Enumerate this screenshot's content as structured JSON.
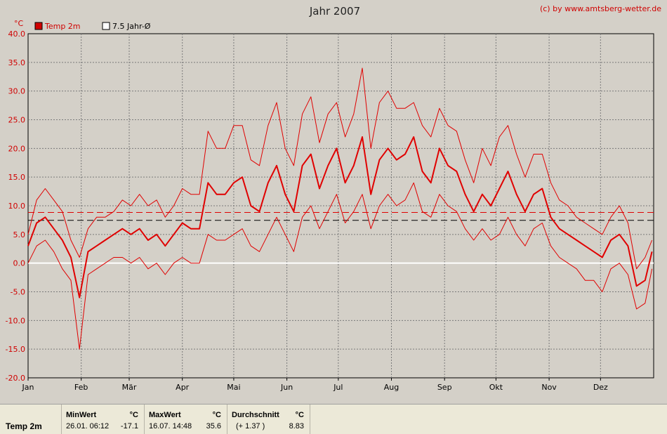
{
  "page": {
    "title": "Jahr 2007",
    "copyright": "(c) by www.amtsberg-wetter.de",
    "unit": "°C"
  },
  "chart_data": {
    "type": "line",
    "title": "Jahr 2007",
    "ylabel": "°C",
    "ylim": [
      -20,
      40
    ],
    "yticks": [
      "40.0",
      "35.0",
      "30.0",
      "25.0",
      "20.0",
      "15.0",
      "10.0",
      "5.0",
      "0.0",
      "-5.0",
      "-10.0",
      "-15.0",
      "-20.0"
    ],
    "months": [
      "Jan",
      "Feb",
      "Mär",
      "Apr",
      "Mai",
      "Jun",
      "Jul",
      "Aug",
      "Sep",
      "Okt",
      "Nov",
      "Dez"
    ],
    "grid": true,
    "legend": [
      {
        "name": "Temp 2m",
        "color": "#e00000"
      },
      {
        "name": "7.5 Jahr-Ø",
        "color": "#000000"
      }
    ],
    "reference_lines": {
      "year_average": 8.83,
      "long_term_average": 7.46,
      "zero": 0
    },
    "series": [
      {
        "name": "Temp 2m",
        "kind": "daily_mean",
        "color": "#e00000",
        "x": [
          1,
          6,
          11,
          16,
          21,
          26,
          31,
          36,
          41,
          46,
          51,
          56,
          61,
          66,
          71,
          76,
          81,
          86,
          91,
          96,
          101,
          106,
          111,
          116,
          121,
          126,
          131,
          136,
          141,
          146,
          151,
          156,
          161,
          166,
          171,
          176,
          181,
          186,
          191,
          196,
          201,
          206,
          211,
          216,
          221,
          226,
          231,
          236,
          241,
          246,
          251,
          256,
          261,
          266,
          271,
          276,
          281,
          286,
          291,
          296,
          301,
          306,
          311,
          316,
          321,
          326,
          331,
          336,
          341,
          346,
          351,
          356,
          361,
          365
        ],
        "values": [
          3,
          7,
          8,
          6,
          4,
          1,
          -6,
          2,
          3,
          4,
          5,
          6,
          5,
          6,
          4,
          5,
          3,
          5,
          7,
          6,
          6,
          14,
          12,
          12,
          14,
          15,
          10,
          9,
          14,
          17,
          12,
          9,
          17,
          19,
          13,
          17,
          20,
          14,
          17,
          22,
          12,
          18,
          20,
          18,
          19,
          22,
          16,
          14,
          20,
          17,
          16,
          12,
          9,
          12,
          10,
          13,
          16,
          12,
          9,
          12,
          13,
          8,
          6,
          5,
          4,
          3,
          2,
          1,
          4,
          5,
          3,
          -4,
          -3,
          2
        ]
      },
      {
        "name": "Temp 2m max",
        "kind": "daily_max",
        "color": "#e00000",
        "x": [
          1,
          6,
          11,
          16,
          21,
          26,
          31,
          36,
          41,
          46,
          51,
          56,
          61,
          66,
          71,
          76,
          81,
          86,
          91,
          96,
          101,
          106,
          111,
          116,
          121,
          126,
          131,
          136,
          141,
          146,
          151,
          156,
          161,
          166,
          171,
          176,
          181,
          186,
          191,
          196,
          201,
          206,
          211,
          216,
          221,
          226,
          231,
          236,
          241,
          246,
          251,
          256,
          261,
          266,
          271,
          276,
          281,
          286,
          291,
          296,
          301,
          306,
          311,
          316,
          321,
          326,
          331,
          336,
          341,
          346,
          351,
          356,
          361,
          365
        ],
        "values": [
          5,
          11,
          13,
          11,
          9,
          4,
          1,
          6,
          8,
          8,
          9,
          11,
          10,
          12,
          10,
          11,
          8,
          10,
          13,
          12,
          12,
          23,
          20,
          20,
          24,
          24,
          18,
          17,
          24,
          28,
          20,
          17,
          26,
          29,
          21,
          26,
          28,
          22,
          26,
          34,
          20,
          28,
          30,
          27,
          27,
          28,
          24,
          22,
          27,
          24,
          23,
          18,
          14,
          20,
          17,
          22,
          24,
          19,
          15,
          19,
          19,
          14,
          11,
          10,
          8,
          7,
          6,
          5,
          8,
          10,
          7,
          -1,
          1,
          4
        ]
      },
      {
        "name": "Temp 2m min",
        "kind": "daily_min",
        "color": "#e00000",
        "x": [
          1,
          6,
          11,
          16,
          21,
          26,
          31,
          36,
          41,
          46,
          51,
          56,
          61,
          66,
          71,
          76,
          81,
          86,
          91,
          96,
          101,
          106,
          111,
          116,
          121,
          126,
          131,
          136,
          141,
          146,
          151,
          156,
          161,
          166,
          171,
          176,
          181,
          186,
          191,
          196,
          201,
          206,
          211,
          216,
          221,
          226,
          231,
          236,
          241,
          246,
          251,
          256,
          261,
          266,
          271,
          276,
          281,
          286,
          291,
          296,
          301,
          306,
          311,
          316,
          321,
          326,
          331,
          336,
          341,
          346,
          351,
          356,
          361,
          365
        ],
        "values": [
          0,
          3,
          4,
          2,
          -1,
          -3,
          -15,
          -2,
          -1,
          0,
          1,
          1,
          0,
          1,
          -1,
          0,
          -2,
          0,
          1,
          0,
          0,
          5,
          4,
          4,
          5,
          6,
          3,
          2,
          5,
          8,
          5,
          2,
          8,
          10,
          6,
          9,
          12,
          7,
          9,
          12,
          6,
          10,
          12,
          10,
          11,
          14,
          9,
          8,
          12,
          10,
          9,
          6,
          4,
          6,
          4,
          5,
          8,
          5,
          3,
          6,
          7,
          3,
          1,
          0,
          -1,
          -3,
          -3,
          -5,
          -1,
          0,
          -2,
          -8,
          -7,
          -1
        ]
      }
    ]
  },
  "stats": {
    "series_label": "Temp 2m",
    "min": {
      "header": "MinWert",
      "unit": "°C",
      "datetime": "26.01.  06:12",
      "value": "-17.1"
    },
    "max": {
      "header": "MaxWert",
      "unit": "°C",
      "datetime": "16.07.  14:48",
      "value": "35.6"
    },
    "avg": {
      "header": "Durchschnitt",
      "unit": "°C",
      "delta": "(+ 1.37 )",
      "value": "8.83"
    }
  }
}
